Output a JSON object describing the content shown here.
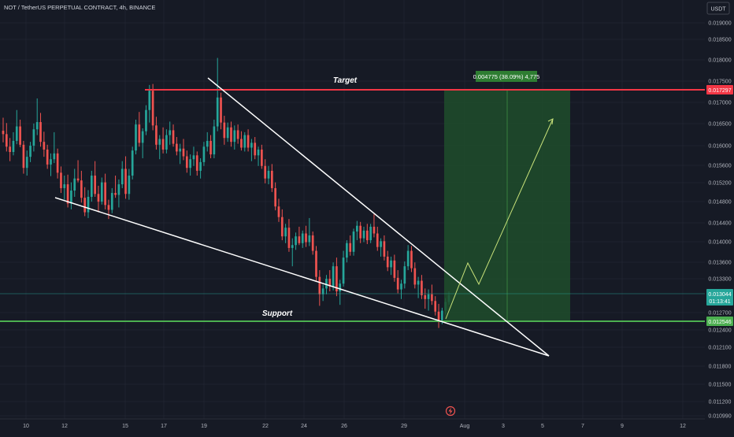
{
  "header": {
    "symbol_title": "NOT / TetherUS PERPETUAL CONTRACT, 4h, BINANCE",
    "currency_button": "USDT"
  },
  "annotations": {
    "target_label": "Target",
    "support_label": "Support",
    "measure_label": "0.004775 (38.09%) 4,775"
  },
  "price_badges": {
    "target": "0.017297",
    "current_price": "0.013044",
    "countdown": "01:13:41",
    "support": "0.012546"
  },
  "colors": {
    "background": "#161a25",
    "up": "#26a69a",
    "down": "#ef5350",
    "target_line": "#f23645",
    "support_line": "#4caf50",
    "projection_zone": "#1e4d2b"
  },
  "icons": {
    "replay": "lightning-icon"
  },
  "chart_data": {
    "type": "candlestick",
    "title": "NOT / TetherUS PERPETUAL CONTRACT, 4h, BINANCE",
    "timeframe": "4h",
    "exchange": "BINANCE",
    "y_axis_labels": [
      "0.019000",
      "0.018500",
      "0.018000",
      "0.017500",
      "0.017000",
      "0.016500",
      "0.016000",
      "0.015600",
      "0.015200",
      "0.014800",
      "0.014400",
      "0.014000",
      "0.013600",
      "0.013300",
      "0.012700",
      "0.012400",
      "0.012100",
      "0.011800",
      "0.011500",
      "0.011200",
      "0.010990"
    ],
    "x_axis_labels": [
      "10",
      "12",
      "15",
      "17",
      "19",
      "22",
      "24",
      "26",
      "29",
      "Aug",
      "3",
      "5",
      "7",
      "9",
      "12"
    ],
    "series": [
      {
        "o": 0.01645,
        "h": 0.01672,
        "l": 0.01621,
        "c": 0.01638
      },
      {
        "o": 0.01638,
        "h": 0.01661,
        "l": 0.01602,
        "c": 0.01612
      },
      {
        "o": 0.01612,
        "h": 0.0163,
        "l": 0.01582,
        "c": 0.01601
      },
      {
        "o": 0.01601,
        "h": 0.01642,
        "l": 0.01594,
        "c": 0.01624
      },
      {
        "o": 0.01624,
        "h": 0.01688,
        "l": 0.01617,
        "c": 0.01654
      },
      {
        "o": 0.01654,
        "h": 0.01668,
        "l": 0.01611,
        "c": 0.01616
      },
      {
        "o": 0.01616,
        "h": 0.01624,
        "l": 0.01556,
        "c": 0.01568
      },
      {
        "o": 0.01568,
        "h": 0.01604,
        "l": 0.01552,
        "c": 0.01591
      },
      {
        "o": 0.01591,
        "h": 0.01622,
        "l": 0.0158,
        "c": 0.01614
      },
      {
        "o": 0.01614,
        "h": 0.0166,
        "l": 0.01602,
        "c": 0.01648
      },
      {
        "o": 0.01648,
        "h": 0.01712,
        "l": 0.01636,
        "c": 0.01663
      },
      {
        "o": 0.01663,
        "h": 0.01682,
        "l": 0.01612,
        "c": 0.01622
      },
      {
        "o": 0.01622,
        "h": 0.01643,
        "l": 0.01591,
        "c": 0.01606
      },
      {
        "o": 0.01606,
        "h": 0.01616,
        "l": 0.01566,
        "c": 0.01575
      },
      {
        "o": 0.01575,
        "h": 0.01598,
        "l": 0.01551,
        "c": 0.01586
      },
      {
        "o": 0.01586,
        "h": 0.01642,
        "l": 0.01578,
        "c": 0.01598
      },
      {
        "o": 0.01598,
        "h": 0.01608,
        "l": 0.01546,
        "c": 0.01558
      },
      {
        "o": 0.01558,
        "h": 0.01571,
        "l": 0.01516,
        "c": 0.01526
      },
      {
        "o": 0.01526,
        "h": 0.01552,
        "l": 0.01502,
        "c": 0.01534
      },
      {
        "o": 0.01534,
        "h": 0.01554,
        "l": 0.01486,
        "c": 0.01494
      },
      {
        "o": 0.01494,
        "h": 0.01538,
        "l": 0.01482,
        "c": 0.01521
      },
      {
        "o": 0.01521,
        "h": 0.01566,
        "l": 0.01508,
        "c": 0.01546
      },
      {
        "o": 0.01546,
        "h": 0.01584,
        "l": 0.01538,
        "c": 0.01542
      },
      {
        "o": 0.01542,
        "h": 0.01562,
        "l": 0.01496,
        "c": 0.01506
      },
      {
        "o": 0.01506,
        "h": 0.01528,
        "l": 0.01468,
        "c": 0.01476
      },
      {
        "o": 0.01476,
        "h": 0.01522,
        "l": 0.01464,
        "c": 0.01508
      },
      {
        "o": 0.01508,
        "h": 0.01562,
        "l": 0.01498,
        "c": 0.01552
      },
      {
        "o": 0.01552,
        "h": 0.01582,
        "l": 0.01508,
        "c": 0.01514
      },
      {
        "o": 0.01514,
        "h": 0.01531,
        "l": 0.01476,
        "c": 0.01498
      },
      {
        "o": 0.01498,
        "h": 0.01548,
        "l": 0.01492,
        "c": 0.01538
      },
      {
        "o": 0.01538,
        "h": 0.01556,
        "l": 0.01482,
        "c": 0.01491
      },
      {
        "o": 0.01491,
        "h": 0.01502,
        "l": 0.01462,
        "c": 0.01481
      },
      {
        "o": 0.01481,
        "h": 0.01526,
        "l": 0.01474,
        "c": 0.01516
      },
      {
        "o": 0.01516,
        "h": 0.01552,
        "l": 0.01506,
        "c": 0.01512
      },
      {
        "o": 0.01512,
        "h": 0.01544,
        "l": 0.01486,
        "c": 0.01534
      },
      {
        "o": 0.01534,
        "h": 0.01582,
        "l": 0.01526,
        "c": 0.01566
      },
      {
        "o": 0.01566,
        "h": 0.01592,
        "l": 0.01504,
        "c": 0.01514
      },
      {
        "o": 0.01514,
        "h": 0.01566,
        "l": 0.01502,
        "c": 0.01552
      },
      {
        "o": 0.01552,
        "h": 0.01612,
        "l": 0.01544,
        "c": 0.01604
      },
      {
        "o": 0.01604,
        "h": 0.01668,
        "l": 0.01596,
        "c": 0.01658
      },
      {
        "o": 0.01658,
        "h": 0.01684,
        "l": 0.01612,
        "c": 0.0162
      },
      {
        "o": 0.0162,
        "h": 0.0165,
        "l": 0.01588,
        "c": 0.01644
      },
      {
        "o": 0.01644,
        "h": 0.01698,
        "l": 0.01636,
        "c": 0.01688
      },
      {
        "o": 0.01688,
        "h": 0.0174,
        "l": 0.01662,
        "c": 0.01728
      },
      {
        "o": 0.01728,
        "h": 0.01742,
        "l": 0.01646,
        "c": 0.01656
      },
      {
        "o": 0.01656,
        "h": 0.01674,
        "l": 0.01606,
        "c": 0.01616
      },
      {
        "o": 0.01616,
        "h": 0.01636,
        "l": 0.01586,
        "c": 0.01628
      },
      {
        "o": 0.01628,
        "h": 0.01652,
        "l": 0.01598,
        "c": 0.01606
      },
      {
        "o": 0.01606,
        "h": 0.01648,
        "l": 0.01598,
        "c": 0.01636
      },
      {
        "o": 0.01636,
        "h": 0.01664,
        "l": 0.01616,
        "c": 0.01646
      },
      {
        "o": 0.01646,
        "h": 0.01658,
        "l": 0.01612,
        "c": 0.01618
      },
      {
        "o": 0.01618,
        "h": 0.01632,
        "l": 0.01594,
        "c": 0.01602
      },
      {
        "o": 0.01602,
        "h": 0.01618,
        "l": 0.01576,
        "c": 0.01608
      },
      {
        "o": 0.01608,
        "h": 0.01628,
        "l": 0.01584,
        "c": 0.01592
      },
      {
        "o": 0.01592,
        "h": 0.01604,
        "l": 0.01558,
        "c": 0.01568
      },
      {
        "o": 0.01568,
        "h": 0.01596,
        "l": 0.01552,
        "c": 0.01586
      },
      {
        "o": 0.01586,
        "h": 0.01612,
        "l": 0.01572,
        "c": 0.01594
      },
      {
        "o": 0.01594,
        "h": 0.01602,
        "l": 0.01552,
        "c": 0.01562
      },
      {
        "o": 0.01562,
        "h": 0.01588,
        "l": 0.01546,
        "c": 0.0158
      },
      {
        "o": 0.0158,
        "h": 0.01622,
        "l": 0.01572,
        "c": 0.01612
      },
      {
        "o": 0.01612,
        "h": 0.01642,
        "l": 0.01602,
        "c": 0.01624
      },
      {
        "o": 0.01624,
        "h": 0.01636,
        "l": 0.01588,
        "c": 0.01596
      },
      {
        "o": 0.01596,
        "h": 0.01668,
        "l": 0.01588,
        "c": 0.01654
      },
      {
        "o": 0.01654,
        "h": 0.01796,
        "l": 0.01644,
        "c": 0.01714
      },
      {
        "o": 0.01714,
        "h": 0.01724,
        "l": 0.01648,
        "c": 0.01662
      },
      {
        "o": 0.01662,
        "h": 0.01676,
        "l": 0.01616,
        "c": 0.0163
      },
      {
        "o": 0.0163,
        "h": 0.01662,
        "l": 0.01622,
        "c": 0.01652
      },
      {
        "o": 0.01652,
        "h": 0.01664,
        "l": 0.01612,
        "c": 0.01622
      },
      {
        "o": 0.01622,
        "h": 0.01656,
        "l": 0.01606,
        "c": 0.01646
      },
      {
        "o": 0.01646,
        "h": 0.01658,
        "l": 0.01618,
        "c": 0.01628
      },
      {
        "o": 0.01628,
        "h": 0.01644,
        "l": 0.01604,
        "c": 0.0161
      },
      {
        "o": 0.0161,
        "h": 0.01642,
        "l": 0.01602,
        "c": 0.01636
      },
      {
        "o": 0.01636,
        "h": 0.01648,
        "l": 0.01602,
        "c": 0.0161
      },
      {
        "o": 0.0161,
        "h": 0.01628,
        "l": 0.01582,
        "c": 0.0162
      },
      {
        "o": 0.0162,
        "h": 0.01632,
        "l": 0.01586,
        "c": 0.01594
      },
      {
        "o": 0.01594,
        "h": 0.01612,
        "l": 0.01572,
        "c": 0.01606
      },
      {
        "o": 0.01606,
        "h": 0.01616,
        "l": 0.01566,
        "c": 0.01572
      },
      {
        "o": 0.01572,
        "h": 0.01586,
        "l": 0.01536,
        "c": 0.01546
      },
      {
        "o": 0.01546,
        "h": 0.01572,
        "l": 0.01534,
        "c": 0.01562
      },
      {
        "o": 0.01562,
        "h": 0.01576,
        "l": 0.01518,
        "c": 0.01526
      },
      {
        "o": 0.01526,
        "h": 0.01538,
        "l": 0.0148,
        "c": 0.01488
      },
      {
        "o": 0.01488,
        "h": 0.01504,
        "l": 0.01456,
        "c": 0.01466
      },
      {
        "o": 0.01466,
        "h": 0.01482,
        "l": 0.01418,
        "c": 0.01426
      },
      {
        "o": 0.01426,
        "h": 0.01452,
        "l": 0.01412,
        "c": 0.01444
      },
      {
        "o": 0.01444,
        "h": 0.01462,
        "l": 0.01394,
        "c": 0.01402
      },
      {
        "o": 0.01402,
        "h": 0.01422,
        "l": 0.01364,
        "c": 0.01408
      },
      {
        "o": 0.01408,
        "h": 0.01434,
        "l": 0.01398,
        "c": 0.01426
      },
      {
        "o": 0.01426,
        "h": 0.01446,
        "l": 0.01408,
        "c": 0.01412
      },
      {
        "o": 0.01412,
        "h": 0.01438,
        "l": 0.01402,
        "c": 0.01432
      },
      {
        "o": 0.01432,
        "h": 0.01448,
        "l": 0.01404,
        "c": 0.01414
      },
      {
        "o": 0.01414,
        "h": 0.01464,
        "l": 0.01406,
        "c": 0.01428
      },
      {
        "o": 0.01428,
        "h": 0.01436,
        "l": 0.01388,
        "c": 0.01396
      },
      {
        "o": 0.01396,
        "h": 0.01406,
        "l": 0.01334,
        "c": 0.01342
      },
      {
        "o": 0.01342,
        "h": 0.01356,
        "l": 0.01282,
        "c": 0.01306
      },
      {
        "o": 0.01306,
        "h": 0.01326,
        "l": 0.01292,
        "c": 0.01318
      },
      {
        "o": 0.01318,
        "h": 0.01346,
        "l": 0.01306,
        "c": 0.01338
      },
      {
        "o": 0.01338,
        "h": 0.01356,
        "l": 0.01312,
        "c": 0.01322
      },
      {
        "o": 0.01322,
        "h": 0.01372,
        "l": 0.01314,
        "c": 0.01364
      },
      {
        "o": 0.01364,
        "h": 0.01382,
        "l": 0.01302,
        "c": 0.01312
      },
      {
        "o": 0.01312,
        "h": 0.01336,
        "l": 0.01284,
        "c": 0.01328
      },
      {
        "o": 0.01328,
        "h": 0.01396,
        "l": 0.01322,
        "c": 0.01382
      },
      {
        "o": 0.01382,
        "h": 0.01418,
        "l": 0.01372,
        "c": 0.01412
      },
      {
        "o": 0.01412,
        "h": 0.01428,
        "l": 0.01386,
        "c": 0.01394
      },
      {
        "o": 0.01394,
        "h": 0.01442,
        "l": 0.01386,
        "c": 0.01436
      },
      {
        "o": 0.01436,
        "h": 0.01458,
        "l": 0.01418,
        "c": 0.01448
      },
      {
        "o": 0.01448,
        "h": 0.01456,
        "l": 0.01412,
        "c": 0.01422
      },
      {
        "o": 0.01422,
        "h": 0.01446,
        "l": 0.01414,
        "c": 0.01438
      },
      {
        "o": 0.01438,
        "h": 0.01452,
        "l": 0.0141,
        "c": 0.01418
      },
      {
        "o": 0.01418,
        "h": 0.01452,
        "l": 0.01412,
        "c": 0.01446
      },
      {
        "o": 0.01446,
        "h": 0.01472,
        "l": 0.01424,
        "c": 0.01432
      },
      {
        "o": 0.01432,
        "h": 0.01446,
        "l": 0.01396,
        "c": 0.01404
      },
      {
        "o": 0.01404,
        "h": 0.01422,
        "l": 0.01384,
        "c": 0.01416
      },
      {
        "o": 0.01416,
        "h": 0.01428,
        "l": 0.01376,
        "c": 0.01384
      },
      {
        "o": 0.01384,
        "h": 0.01396,
        "l": 0.01354,
        "c": 0.01362
      },
      {
        "o": 0.01362,
        "h": 0.01384,
        "l": 0.01346,
        "c": 0.01376
      },
      {
        "o": 0.01376,
        "h": 0.01388,
        "l": 0.01332,
        "c": 0.0134
      },
      {
        "o": 0.0134,
        "h": 0.01356,
        "l": 0.01308,
        "c": 0.01316
      },
      {
        "o": 0.01316,
        "h": 0.01336,
        "l": 0.01296,
        "c": 0.01328
      },
      {
        "o": 0.01328,
        "h": 0.01374,
        "l": 0.01318,
        "c": 0.01364
      },
      {
        "o": 0.01364,
        "h": 0.01408,
        "l": 0.01356,
        "c": 0.01396
      },
      {
        "o": 0.01396,
        "h": 0.01406,
        "l": 0.01352,
        "c": 0.0136
      },
      {
        "o": 0.0136,
        "h": 0.01372,
        "l": 0.01318,
        "c": 0.01326
      },
      {
        "o": 0.01326,
        "h": 0.01342,
        "l": 0.01298,
        "c": 0.01334
      },
      {
        "o": 0.01334,
        "h": 0.01346,
        "l": 0.01296,
        "c": 0.01304
      },
      {
        "o": 0.01304,
        "h": 0.01318,
        "l": 0.01276,
        "c": 0.01296
      },
      {
        "o": 0.01296,
        "h": 0.01316,
        "l": 0.01272,
        "c": 0.01306
      },
      {
        "o": 0.01306,
        "h": 0.01326,
        "l": 0.01284,
        "c": 0.01292
      },
      {
        "o": 0.01292,
        "h": 0.01302,
        "l": 0.01262,
        "c": 0.0127
      },
      {
        "o": 0.0127,
        "h": 0.01286,
        "l": 0.01236,
        "c": 0.01252
      },
      {
        "o": 0.01252,
        "h": 0.01278,
        "l": 0.01244,
        "c": 0.01272
      },
      {
        "o": 0.01272,
        "h": 0.01298,
        "l": 0.01264,
        "c": 0.0129
      },
      {
        "o": 0.0129,
        "h": 0.01312,
        "l": 0.01284,
        "c": 0.01304
      }
    ]
  }
}
